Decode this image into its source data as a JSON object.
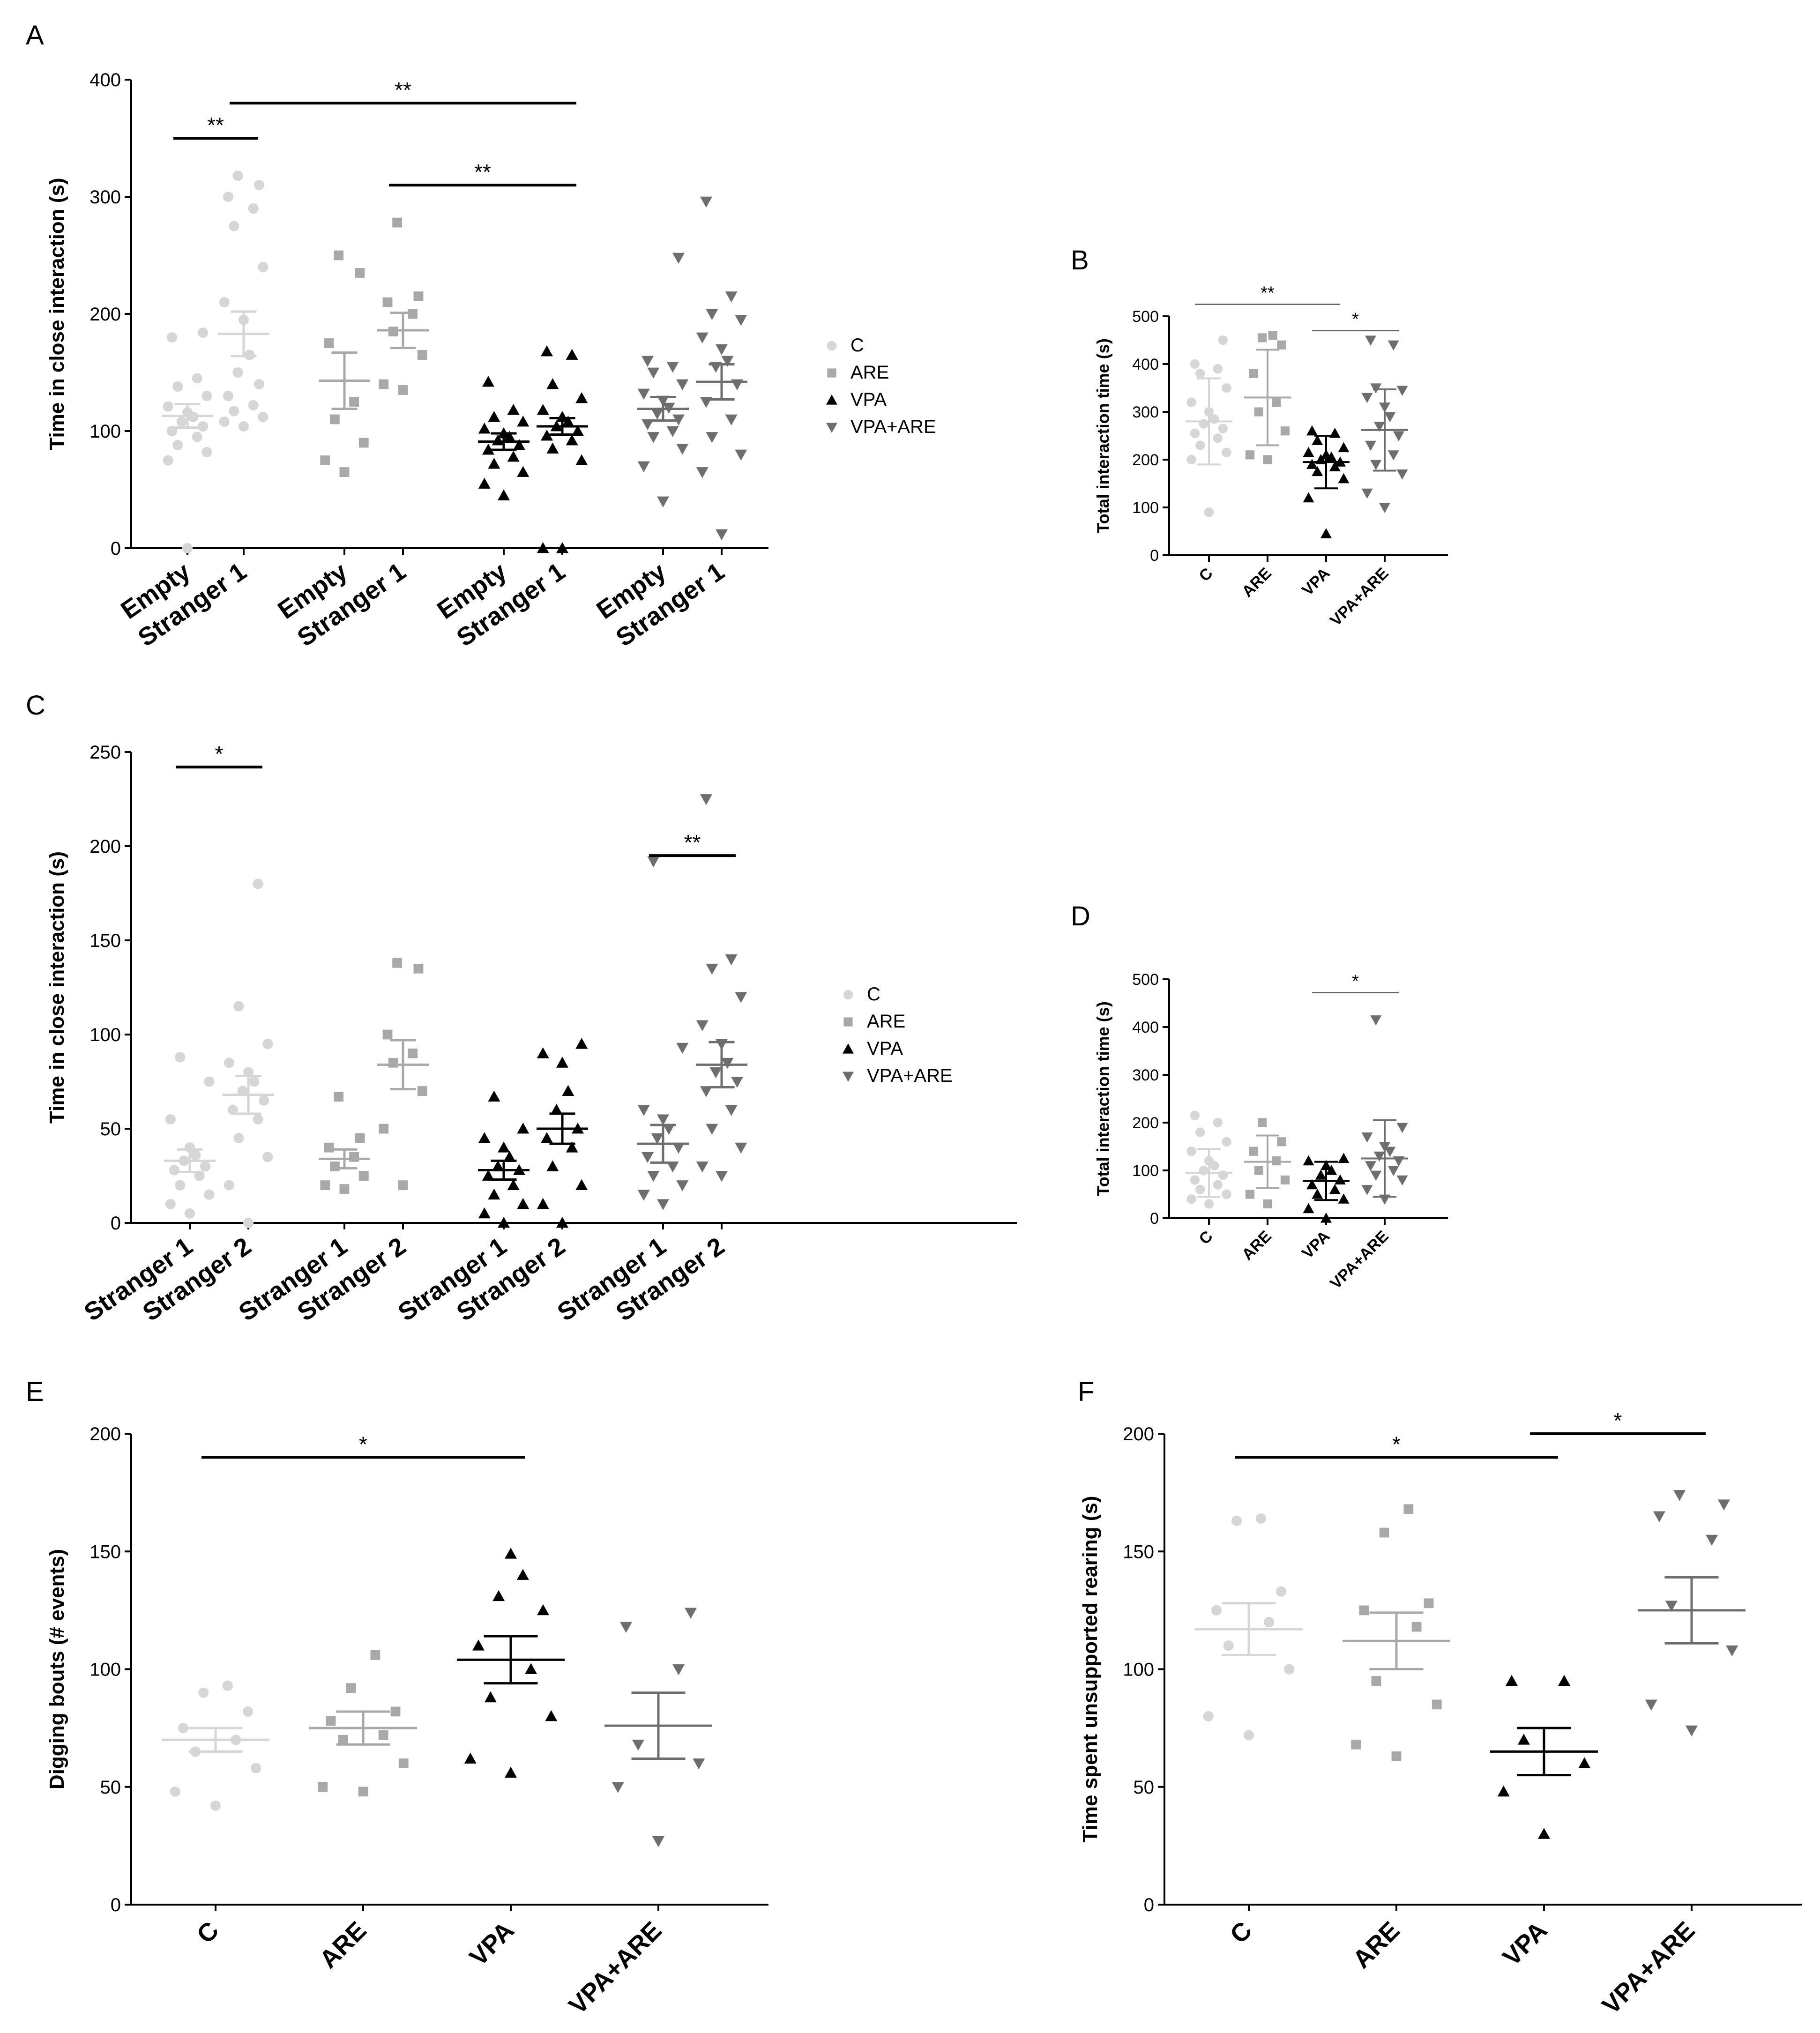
{
  "panels": [
    {
      "id": "A",
      "letter": "A",
      "type": "scatter",
      "ylabel": "Time in close interaction (s)",
      "ylim": [
        0,
        400
      ],
      "yticks": [
        0,
        100,
        200,
        300,
        400
      ],
      "categories": [
        "Empty",
        "Stranger 1",
        "Empty",
        "Stranger 1",
        "Empty",
        "Stranger 1",
        "Empty",
        "Stranger 1"
      ],
      "groups": [
        {
          "name": "C",
          "marker": "circle",
          "color": "#d6d6d6",
          "columns": [
            {
              "points": [
                0,
                75,
                82,
                88,
                95,
                100,
                104,
                108,
                112,
                116,
                121,
                130,
                138,
                145,
                180,
                184
              ],
              "mean": 113,
              "sem": 10
            },
            {
              "points": [
                104,
                108,
                112,
                117,
                122,
                130,
                140,
                150,
                165,
                195,
                210,
                240,
                275,
                290,
                300,
                310,
                318
              ],
              "mean": 183,
              "sem": 19
            }
          ]
        },
        {
          "name": "ARE",
          "marker": "square",
          "color": "#a8a8a8",
          "columns": [
            {
              "points": [
                65,
                75,
                90,
                110,
                125,
                175,
                235,
                250
              ],
              "mean": 143,
              "sem": 24
            },
            {
              "points": [
                135,
                140,
                165,
                185,
                200,
                210,
                215,
                278
              ],
              "mean": 186,
              "sem": 15
            }
          ]
        },
        {
          "name": "VPA",
          "marker": "triangle-up",
          "color": "#000000",
          "columns": [
            {
              "points": [
                45,
                55,
                65,
                72,
                78,
                84,
                88,
                92,
                95,
                98,
                102,
                108,
                112,
                118,
                142
              ],
              "mean": 91,
              "sem": 7
            },
            {
              "points": [
                0,
                0,
                75,
                85,
                92,
                96,
                100,
                104,
                108,
                112,
                118,
                128,
                140,
                165,
                168
              ],
              "mean": 104,
              "sem": 7
            }
          ]
        },
        {
          "name": "VPA+ARE",
          "marker": "triangle-down",
          "color": "#6e6e6e",
          "columns": [
            {
              "points": [
                40,
                70,
                85,
                95,
                100,
                106,
                110,
                115,
                120,
                126,
                132,
                140,
                150,
                155,
                160,
                248
              ],
              "mean": 119,
              "sem": 10
            },
            {
              "points": [
                12,
                65,
                80,
                95,
                110,
                125,
                140,
                155,
                160,
                170,
                180,
                195,
                200,
                215,
                296
              ],
              "mean": 142,
              "sem": 15
            }
          ]
        }
      ],
      "significance": [
        {
          "from": 0,
          "to": 1,
          "y": 350,
          "label": "**"
        },
        {
          "from": 1,
          "to": 5,
          "y": 380,
          "label": "**"
        },
        {
          "from": 3,
          "to": 5,
          "y": 310,
          "label": "**"
        }
      ],
      "legend": [
        "C",
        "ARE",
        "VPA",
        "VPA+ARE"
      ]
    },
    {
      "id": "B",
      "letter": "B",
      "type": "scatter",
      "ylabel": "Total interaction time (s)",
      "ylim": [
        0,
        500
      ],
      "yticks": [
        0,
        100,
        200,
        300,
        400,
        500
      ],
      "categories": [
        "C",
        "ARE",
        "VPA",
        "VPA+ARE"
      ],
      "groups": [
        {
          "name": "C",
          "marker": "circle",
          "color": "#d6d6d6",
          "columns": [
            {
              "points": [
                90,
                200,
                215,
                230,
                245,
                255,
                265,
                275,
                285,
                300,
                320,
                350,
                380,
                390,
                400,
                450
              ],
              "mean": 280,
              "sd": 90
            }
          ]
        },
        {
          "name": "ARE",
          "marker": "square",
          "color": "#a8a8a8",
          "columns": [
            {
              "points": [
                200,
                210,
                260,
                300,
                320,
                380,
                440,
                455,
                460
              ],
              "mean": 330,
              "sd": 100
            }
          ]
        },
        {
          "name": "VPA",
          "marker": "triangle-up",
          "color": "#000000",
          "columns": [
            {
              "points": [
                45,
                120,
                160,
                175,
                185,
                190,
                195,
                200,
                205,
                210,
                215,
                225,
                240,
                255,
                260
              ],
              "mean": 195,
              "sd": 55
            }
          ]
        },
        {
          "name": "VPA+ARE",
          "marker": "triangle-down",
          "color": "#6e6e6e",
          "columns": [
            {
              "points": [
                100,
                130,
                170,
                190,
                210,
                230,
                250,
                270,
                290,
                310,
                330,
                345,
                350,
                440,
                450
              ],
              "mean": 262,
              "sd": 85
            }
          ]
        }
      ],
      "significance": [
        {
          "from": 0,
          "to": 2,
          "y": 525,
          "label": "**"
        },
        {
          "from": 2,
          "to": 3,
          "y": 470,
          "label": "*"
        }
      ],
      "legend": []
    },
    {
      "id": "C",
      "letter": "C",
      "type": "scatter",
      "ylabel": "Time in close interaction (s)",
      "ylim": [
        0,
        250
      ],
      "yticks": [
        0,
        50,
        100,
        150,
        200,
        250
      ],
      "categories": [
        "Stranger 1",
        "Stranger 2",
        "Stranger 1",
        "Stranger 2",
        "Stranger 1",
        "Stranger 2",
        "Stranger 1",
        "Stranger 2"
      ],
      "groups": [
        {
          "name": "C",
          "marker": "circle",
          "color": "#d6d6d6",
          "columns": [
            {
              "points": [
                5,
                10,
                15,
                20,
                25,
                28,
                30,
                33,
                36,
                40,
                55,
                75,
                88
              ],
              "mean": 33,
              "sem": 6
            },
            {
              "points": [
                0,
                20,
                35,
                45,
                55,
                60,
                65,
                70,
                75,
                80,
                85,
                95,
                115,
                180
              ],
              "mean": 68,
              "sem": 10
            }
          ]
        },
        {
          "name": "ARE",
          "marker": "square",
          "color": "#a8a8a8",
          "columns": [
            {
              "points": [
                18,
                20,
                25,
                30,
                35,
                40,
                45,
                67
              ],
              "mean": 34,
              "sem": 5
            },
            {
              "points": [
                20,
                50,
                70,
                85,
                90,
                100,
                135,
                138
              ],
              "mean": 84,
              "sem": 13
            }
          ]
        },
        {
          "name": "VPA",
          "marker": "triangle-up",
          "color": "#000000",
          "columns": [
            {
              "points": [
                0,
                5,
                10,
                15,
                20,
                25,
                28,
                30,
                35,
                40,
                45,
                50,
                67
              ],
              "mean": 28,
              "sem": 5
            },
            {
              "points": [
                0,
                10,
                20,
                30,
                40,
                45,
                50,
                60,
                70,
                85,
                90,
                95
              ],
              "mean": 50,
              "sem": 8
            }
          ]
        },
        {
          "name": "VPA+ARE",
          "marker": "triangle-down",
          "color": "#6e6e6e",
          "columns": [
            {
              "points": [
                10,
                15,
                20,
                25,
                30,
                35,
                40,
                45,
                50,
                55,
                60,
                93,
                192
              ],
              "mean": 42,
              "sem": 10
            },
            {
              "points": [
                25,
                30,
                40,
                50,
                60,
                70,
                75,
                80,
                85,
                95,
                105,
                120,
                135,
                140,
                225
              ],
              "mean": 84,
              "sem": 12
            }
          ]
        }
      ],
      "significance": [
        {
          "from": 0,
          "to": 1,
          "y": 242,
          "label": "*"
        },
        {
          "from": 6,
          "to": 7,
          "y": 195,
          "label": "**"
        }
      ],
      "legend": [
        "C",
        "ARE",
        "VPA",
        "VPA+ARE"
      ]
    },
    {
      "id": "D",
      "letter": "D",
      "type": "scatter",
      "ylabel": "Total interaction time (s)",
      "ylim": [
        0,
        500
      ],
      "yticks": [
        0,
        100,
        200,
        300,
        400,
        500
      ],
      "categories": [
        "C",
        "ARE",
        "VPA",
        "VPA+ARE"
      ],
      "groups": [
        {
          "name": "C",
          "marker": "circle",
          "color": "#d6d6d6",
          "columns": [
            {
              "points": [
                30,
                40,
                50,
                60,
                70,
                80,
                90,
                100,
                110,
                120,
                140,
                160,
                180,
                200,
                215
              ],
              "mean": 95,
              "sd": 50
            }
          ]
        },
        {
          "name": "ARE",
          "marker": "square",
          "color": "#a8a8a8",
          "columns": [
            {
              "points": [
                30,
                50,
                80,
                100,
                120,
                140,
                160,
                200
              ],
              "mean": 118,
              "sd": 55
            }
          ]
        },
        {
          "name": "VPA",
          "marker": "triangle-up",
          "color": "#000000",
          "columns": [
            {
              "points": [
                0,
                20,
                40,
                50,
                60,
                70,
                80,
                90,
                100,
                110,
                120,
                125
              ],
              "mean": 78,
              "sd": 40
            }
          ]
        },
        {
          "name": "VPA+ARE",
          "marker": "triangle-down",
          "color": "#6e6e6e",
          "columns": [
            {
              "points": [
                40,
                60,
                80,
                90,
                100,
                110,
                120,
                130,
                140,
                150,
                170,
                190,
                415
              ],
              "mean": 125,
              "sd": 80
            }
          ]
        }
      ],
      "significance": [
        {
          "from": 2,
          "to": 3,
          "y": 472,
          "label": "*"
        }
      ],
      "legend": []
    },
    {
      "id": "E",
      "letter": "E",
      "type": "scatter",
      "ylabel": "Digging bouts (# events)",
      "ylim": [
        0,
        200
      ],
      "yticks": [
        0,
        50,
        100,
        150,
        200
      ],
      "categories": [
        "C",
        "ARE",
        "VPA",
        "VPA+ARE"
      ],
      "groups": [
        {
          "name": "C",
          "marker": "circle",
          "color": "#d6d6d6",
          "columns": [
            {
              "points": [
                42,
                48,
                58,
                65,
                70,
                75,
                82,
                90,
                93
              ],
              "mean": 70,
              "sem": 5
            }
          ]
        },
        {
          "name": "ARE",
          "marker": "square",
          "color": "#a8a8a8",
          "columns": [
            {
              "points": [
                48,
                50,
                60,
                70,
                72,
                78,
                82,
                92,
                106
              ],
              "mean": 75,
              "sem": 7
            }
          ]
        },
        {
          "name": "VPA",
          "marker": "triangle-up",
          "color": "#000000",
          "columns": [
            {
              "points": [
                56,
                62,
                80,
                88,
                100,
                110,
                125,
                131,
                140,
                149
              ],
              "mean": 104,
              "sem": 10
            }
          ]
        },
        {
          "name": "VPA+ARE",
          "marker": "triangle-down",
          "color": "#6e6e6e",
          "columns": [
            {
              "points": [
                27,
                50,
                60,
                68,
                100,
                118,
                124
              ],
              "mean": 76,
              "sem": 14
            }
          ]
        }
      ],
      "significance": [
        {
          "from": 0,
          "to": 2,
          "y": 190,
          "label": "*"
        }
      ],
      "legend": []
    },
    {
      "id": "F",
      "letter": "F",
      "type": "scatter",
      "ylabel": "Time spent unsupported rearing (s)",
      "ylim": [
        0,
        200
      ],
      "yticks": [
        0,
        50,
        100,
        150,
        200
      ],
      "categories": [
        "C",
        "ARE",
        "VPA",
        "VPA+ARE"
      ],
      "groups": [
        {
          "name": "C",
          "marker": "circle",
          "color": "#d6d6d6",
          "columns": [
            {
              "points": [
                72,
                80,
                100,
                110,
                120,
                125,
                133,
                163,
                164
              ],
              "mean": 117,
              "sem": 11
            }
          ]
        },
        {
          "name": "ARE",
          "marker": "square",
          "color": "#a8a8a8",
          "columns": [
            {
              "points": [
                63,
                68,
                85,
                95,
                118,
                125,
                128,
                158,
                168
              ],
              "mean": 112,
              "sem": 12
            }
          ]
        },
        {
          "name": "VPA",
          "marker": "triangle-up",
          "color": "#000000",
          "columns": [
            {
              "points": [
                30,
                48,
                60,
                70,
                95,
                95
              ],
              "mean": 65,
              "sem": 10
            }
          ]
        },
        {
          "name": "VPA+ARE",
          "marker": "triangle-down",
          "color": "#6e6e6e",
          "columns": [
            {
              "points": [
                74,
                85,
                108,
                127,
                155,
                165,
                170,
                174
              ],
              "mean": 125,
              "sem": 14
            }
          ]
        }
      ],
      "significance": [
        {
          "from": 0,
          "to": 2,
          "y": 190,
          "label": "*"
        },
        {
          "from": 2,
          "to": 3,
          "y": 200,
          "label": "*"
        }
      ],
      "legend": []
    }
  ]
}
